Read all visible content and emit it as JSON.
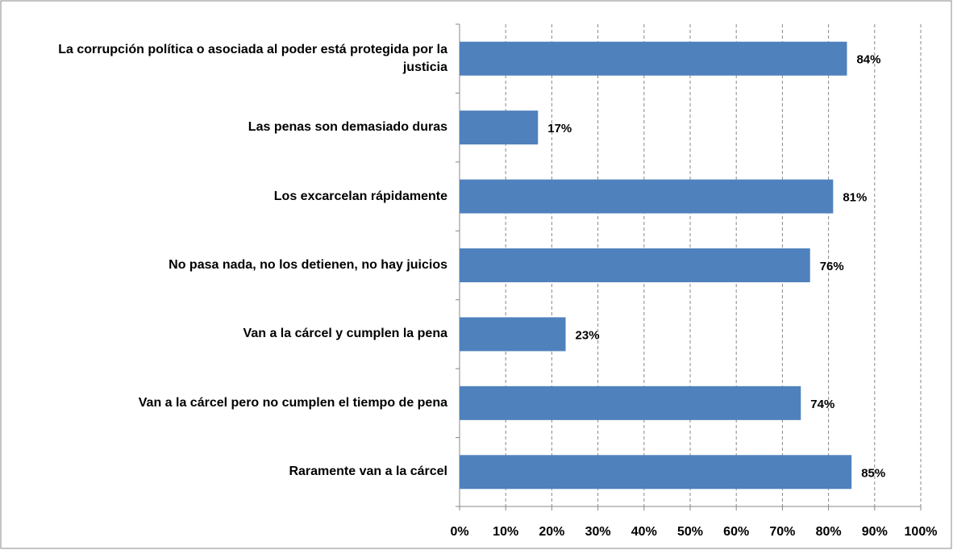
{
  "chart_data": {
    "type": "bar",
    "orientation": "horizontal",
    "categories": [
      "La corrupción política o asociada al poder está protegida por la justicia",
      "Las penas son demasiado duras",
      "Los excarcelan rápidamente",
      "No pasa nada, no los detienen, no hay juicios",
      "Van a la cárcel y cumplen la pena",
      "Van a la cárcel pero no cumplen el tiempo de pena",
      "Raramente van a la cárcel"
    ],
    "values": [
      84,
      17,
      81,
      76,
      23,
      74,
      85
    ],
    "value_labels": [
      "84%",
      "17%",
      "81%",
      "76%",
      "23%",
      "74%",
      "85%"
    ],
    "color": "#4f81bd",
    "xlim": [
      0,
      100
    ],
    "xticks": [
      {
        "value": 0,
        "label": "0%"
      },
      {
        "value": 10,
        "label": "10%"
      },
      {
        "value": 20,
        "label": "20%"
      },
      {
        "value": 30,
        "label": "30%"
      },
      {
        "value": 40,
        "label": "40%"
      },
      {
        "value": 50,
        "label": "50%"
      },
      {
        "value": 60,
        "label": "60%"
      },
      {
        "value": 70,
        "label": "70%"
      },
      {
        "value": 80,
        "label": "80%"
      },
      {
        "value": 90,
        "label": "90%"
      },
      {
        "value": 100,
        "label": "100%"
      }
    ],
    "grid": true
  }
}
